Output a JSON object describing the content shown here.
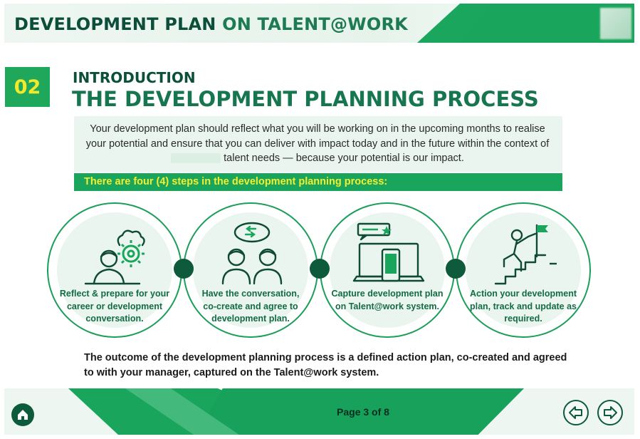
{
  "header": {
    "title_part1": "DEVELOPMENT PLAN ",
    "title_part2": "ON TALENT@WORK"
  },
  "section": {
    "number": "02",
    "subtitle": "INTRODUCTION",
    "title": "THE DEVELOPMENT PLANNING PROCESS"
  },
  "intro": {
    "line1": "Your development plan should reflect what you will be working on in the upcoming months to realise your potential and ensure that you can deliver with impact today and in the future within the context of",
    "line2": "talent needs — because your potential is our impact."
  },
  "steps_heading": "There are four (4) steps in the development planning process:",
  "steps": [
    {
      "label": "Reflect & prepare for your career or development conversation.",
      "icon": "person-gear-icon"
    },
    {
      "label": "Have the conversation, co-create and agree to development plan.",
      "icon": "conversation-icon"
    },
    {
      "label": "Capture development plan on Talent@work system.",
      "icon": "laptop-phone-icon"
    },
    {
      "label": "Action your development plan, track and update as required.",
      "icon": "climb-stairs-flag-icon"
    }
  ],
  "outcome": "The outcome of the development planning process is a defined action plan, co-created and agreed to with your manager, captured on the Talent@work system.",
  "footer": {
    "page_indicator": "Page 3 of 8"
  },
  "colors": {
    "brand_green": "#1aa55c",
    "dark_green": "#0e5a3d",
    "yellow": "#f4ee2e"
  }
}
